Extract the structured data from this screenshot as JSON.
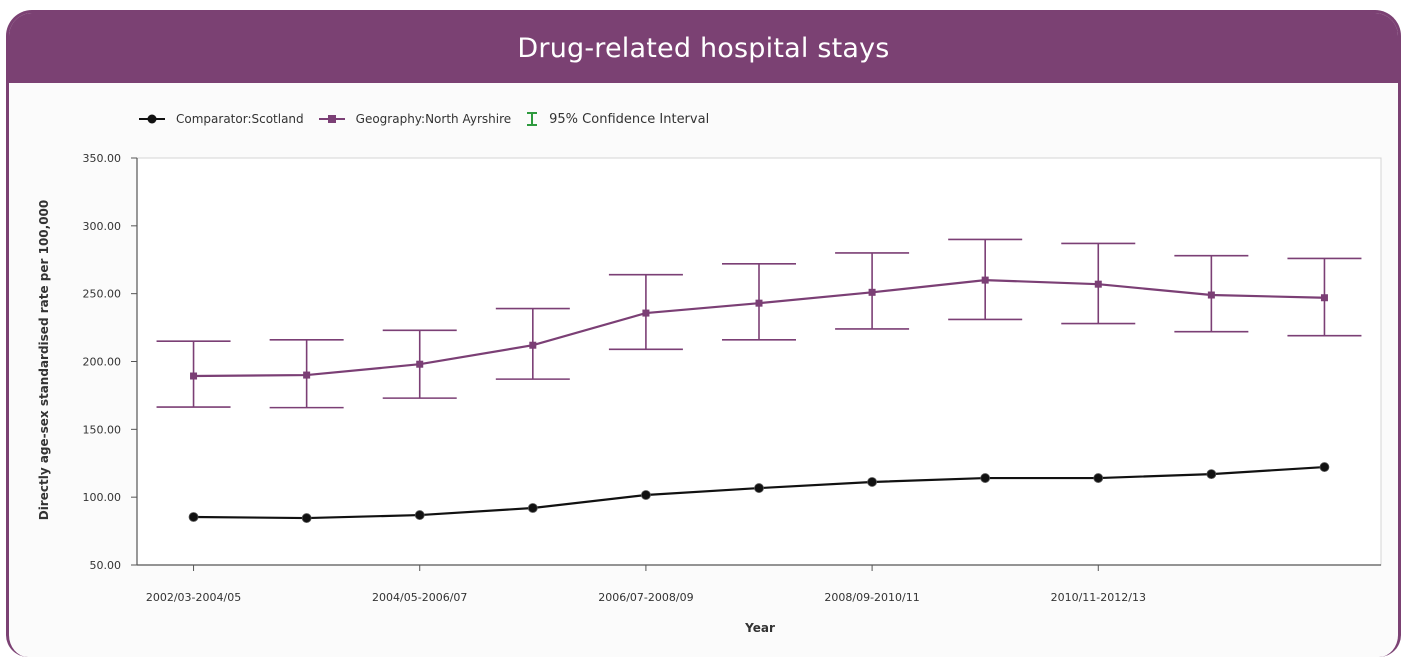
{
  "chart_data": {
    "type": "line",
    "title": "Drug-related hospital stays",
    "xlabel": "Year",
    "ylabel": "Directly age-sex standardised rate per 100,000",
    "categories": [
      "2002/03-2004/05",
      "",
      "2004/05-2006/07",
      "",
      "2006/07-2008/09",
      "",
      "2008/09-2010/11",
      "",
      "2010/11-2012/13",
      "",
      ""
    ],
    "y_ticks": [
      "50.00",
      "100.00",
      "150.00",
      "200.00",
      "250.00",
      "300.00",
      "350.00"
    ],
    "ylim": [
      50,
      350
    ],
    "grid": false,
    "legend_position": "top-left",
    "series": [
      {
        "name": "Comparator:Scotland",
        "color": "#111111",
        "marker": "circle",
        "values": [
          85.4,
          84.6,
          86.8,
          92.0,
          101.6,
          106.7,
          111.2,
          114.1,
          114.1,
          117.0,
          122.2
        ]
      },
      {
        "name": "Geography:North Ayrshire",
        "color": "#7b3f75",
        "marker": "square",
        "values": [
          189.3,
          190.0,
          198.0,
          212.0,
          235.7,
          243.0,
          251.0,
          260.0,
          257.0,
          249.0,
          247.0
        ],
        "ci_lower": [
          166.4,
          166.0,
          173.0,
          187.0,
          209.0,
          216.0,
          224.0,
          231.0,
          228.0,
          222.0,
          219.0
        ],
        "ci_upper": [
          215.0,
          216.0,
          223.0,
          239.0,
          264.0,
          272.0,
          280.0,
          290.0,
          287.0,
          278.0,
          276.0
        ]
      }
    ],
    "ci_legend": "95% Confidence Interval",
    "ci_legend_color": "#2e9a3e"
  }
}
